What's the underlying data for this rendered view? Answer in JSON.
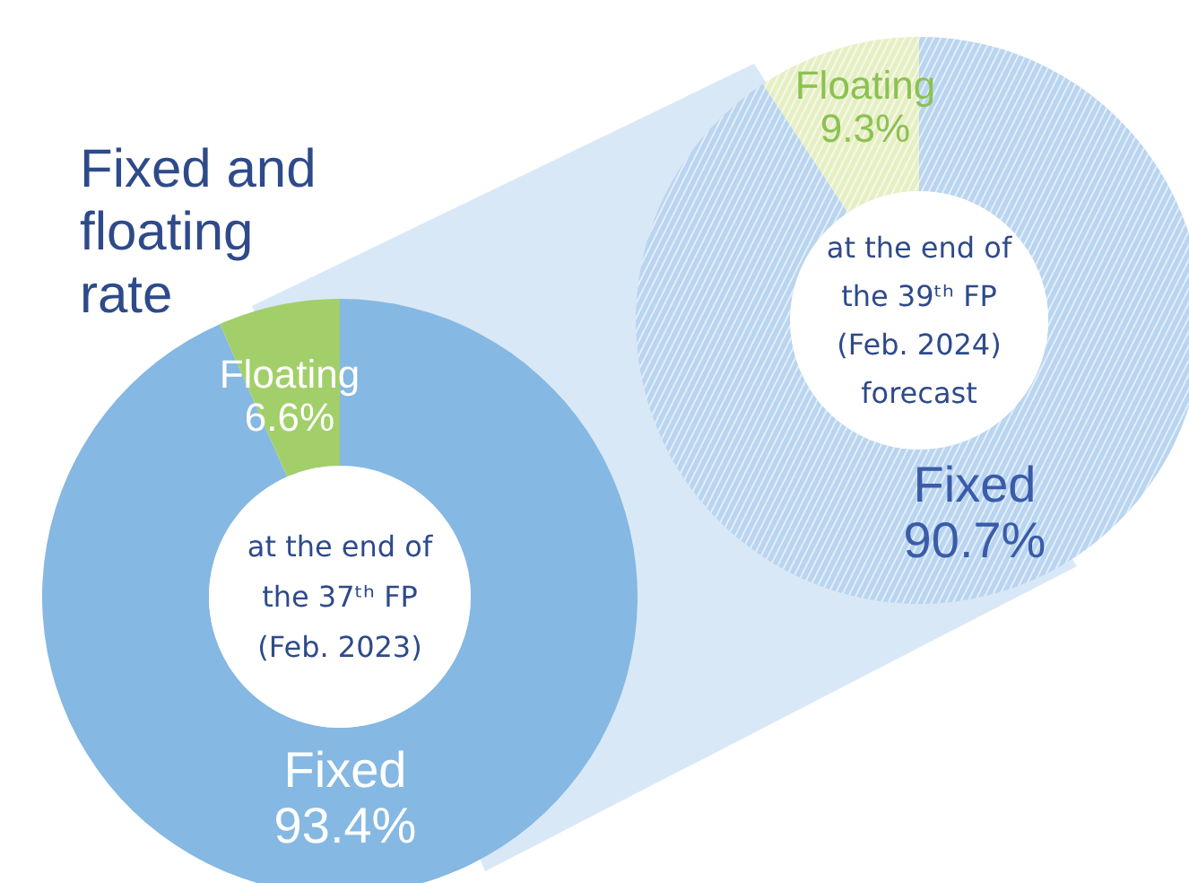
{
  "chart_data": [
    {
      "type": "donut",
      "title": "Fixed and floating rate",
      "categories": [
        "Fixed",
        "Floating"
      ],
      "values": [
        93.4,
        6.6
      ],
      "colors": [
        "#85b8e2",
        "#a2cf6a"
      ],
      "value_labels": [
        "93.4%",
        "6.6%"
      ],
      "annotations": [
        "at the end of",
        "the 37ᵗʰ FP",
        "(Feb. 2023)"
      ]
    },
    {
      "type": "donut",
      "categories": [
        "Fixed",
        "Floating"
      ],
      "values": [
        90.7,
        9.3
      ],
      "colors": [
        "#b9d5f0",
        "#e6efc4"
      ],
      "value_labels": [
        "90.7%",
        "9.3%"
      ],
      "annotations": [
        "at the end of",
        "the 39ᵗʰ FP",
        "(Feb. 2024)",
        "forecast"
      ]
    }
  ]
}
